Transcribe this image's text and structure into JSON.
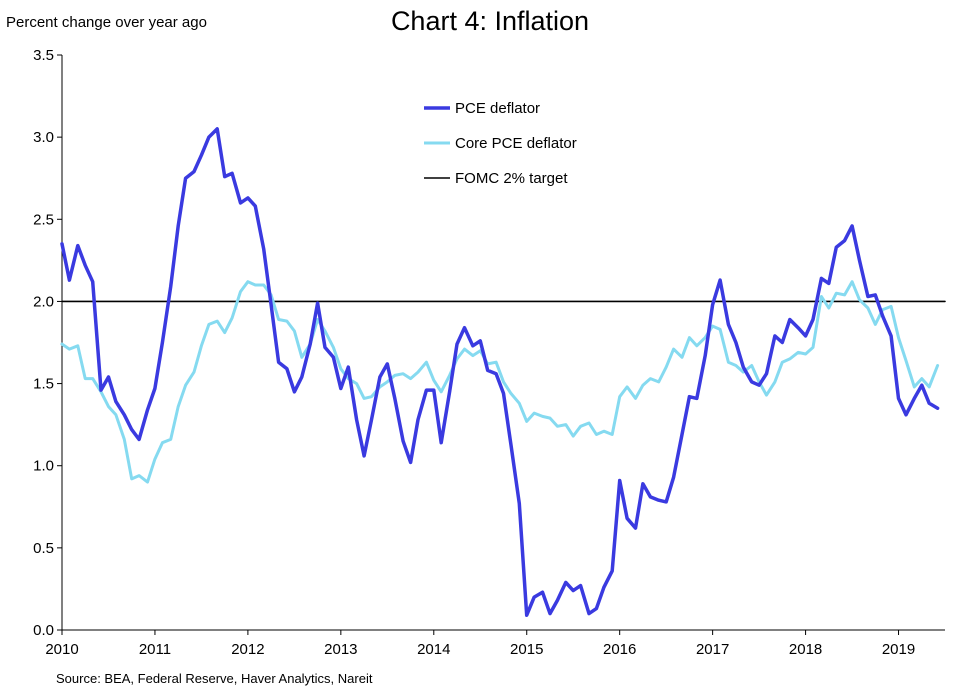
{
  "header": {
    "title": "Chart 4: Inflation",
    "y_unit_label": "Percent change over year ago"
  },
  "footer": {
    "source": "Source: BEA, Federal Reserve, Haver Analytics, Nareit"
  },
  "chart_data": {
    "type": "line",
    "title": "Chart 4: Inflation",
    "ylabel": "Percent change over year ago",
    "xlabel": "",
    "ylim": [
      0.0,
      3.5
    ],
    "xlim": [
      2010,
      2019.5
    ],
    "y_ticks": [
      "0.0",
      "0.5",
      "1.0",
      "1.5",
      "2.0",
      "2.5",
      "3.0",
      "3.5"
    ],
    "x_ticks": [
      "2010",
      "2011",
      "2012",
      "2013",
      "2014",
      "2015",
      "2016",
      "2017",
      "2018",
      "2019"
    ],
    "grid": false,
    "legend_position": "top-center",
    "series": [
      {
        "name": "PCE deflator",
        "color": "#3a3ae0",
        "points": [
          [
            2010.0,
            2.35
          ],
          [
            2010.08,
            2.13
          ],
          [
            2010.17,
            2.34
          ],
          [
            2010.25,
            2.22
          ],
          [
            2010.33,
            2.12
          ],
          [
            2010.42,
            1.46
          ],
          [
            2010.5,
            1.54
          ],
          [
            2010.58,
            1.39
          ],
          [
            2010.67,
            1.31
          ],
          [
            2010.75,
            1.22
          ],
          [
            2010.83,
            1.16
          ],
          [
            2010.92,
            1.34
          ],
          [
            2011.0,
            1.47
          ],
          [
            2011.08,
            1.75
          ],
          [
            2011.17,
            2.09
          ],
          [
            2011.25,
            2.46
          ],
          [
            2011.33,
            2.75
          ],
          [
            2011.42,
            2.79
          ],
          [
            2011.5,
            2.89
          ],
          [
            2011.58,
            3.0
          ],
          [
            2011.67,
            3.05
          ],
          [
            2011.75,
            2.76
          ],
          [
            2011.83,
            2.78
          ],
          [
            2011.92,
            2.6
          ],
          [
            2012.0,
            2.63
          ],
          [
            2012.08,
            2.58
          ],
          [
            2012.17,
            2.32
          ],
          [
            2012.25,
            1.98
          ],
          [
            2012.33,
            1.63
          ],
          [
            2012.42,
            1.59
          ],
          [
            2012.5,
            1.45
          ],
          [
            2012.58,
            1.54
          ],
          [
            2012.67,
            1.74
          ],
          [
            2012.75,
            1.99
          ],
          [
            2012.83,
            1.72
          ],
          [
            2012.92,
            1.66
          ],
          [
            2013.0,
            1.47
          ],
          [
            2013.08,
            1.6
          ],
          [
            2013.17,
            1.28
          ],
          [
            2013.25,
            1.06
          ],
          [
            2013.33,
            1.28
          ],
          [
            2013.42,
            1.54
          ],
          [
            2013.5,
            1.62
          ],
          [
            2013.58,
            1.41
          ],
          [
            2013.67,
            1.15
          ],
          [
            2013.75,
            1.02
          ],
          [
            2013.83,
            1.28
          ],
          [
            2013.92,
            1.46
          ],
          [
            2014.0,
            1.46
          ],
          [
            2014.08,
            1.14
          ],
          [
            2014.17,
            1.45
          ],
          [
            2014.25,
            1.74
          ],
          [
            2014.33,
            1.84
          ],
          [
            2014.42,
            1.73
          ],
          [
            2014.5,
            1.76
          ],
          [
            2014.58,
            1.58
          ],
          [
            2014.67,
            1.56
          ],
          [
            2014.75,
            1.44
          ],
          [
            2014.83,
            1.13
          ],
          [
            2014.92,
            0.77
          ],
          [
            2015.0,
            0.09
          ],
          [
            2015.08,
            0.2
          ],
          [
            2015.17,
            0.23
          ],
          [
            2015.25,
            0.1
          ],
          [
            2015.33,
            0.18
          ],
          [
            2015.42,
            0.29
          ],
          [
            2015.5,
            0.24
          ],
          [
            2015.58,
            0.27
          ],
          [
            2015.67,
            0.1
          ],
          [
            2015.75,
            0.13
          ],
          [
            2015.83,
            0.26
          ],
          [
            2015.92,
            0.36
          ],
          [
            2016.0,
            0.91
          ],
          [
            2016.08,
            0.68
          ],
          [
            2016.17,
            0.62
          ],
          [
            2016.25,
            0.89
          ],
          [
            2016.33,
            0.81
          ],
          [
            2016.42,
            0.79
          ],
          [
            2016.5,
            0.78
          ],
          [
            2016.58,
            0.93
          ],
          [
            2016.67,
            1.19
          ],
          [
            2016.75,
            1.42
          ],
          [
            2016.83,
            1.41
          ],
          [
            2016.92,
            1.67
          ],
          [
            2017.0,
            1.98
          ],
          [
            2017.08,
            2.13
          ],
          [
            2017.17,
            1.86
          ],
          [
            2017.25,
            1.75
          ],
          [
            2017.33,
            1.6
          ],
          [
            2017.42,
            1.51
          ],
          [
            2017.5,
            1.49
          ],
          [
            2017.58,
            1.56
          ],
          [
            2017.67,
            1.79
          ],
          [
            2017.75,
            1.75
          ],
          [
            2017.83,
            1.89
          ],
          [
            2017.92,
            1.84
          ],
          [
            2018.0,
            1.79
          ],
          [
            2018.08,
            1.89
          ],
          [
            2018.17,
            2.14
          ],
          [
            2018.25,
            2.11
          ],
          [
            2018.33,
            2.33
          ],
          [
            2018.42,
            2.37
          ],
          [
            2018.5,
            2.46
          ],
          [
            2018.58,
            2.25
          ],
          [
            2018.67,
            2.03
          ],
          [
            2018.75,
            2.04
          ],
          [
            2018.83,
            1.91
          ],
          [
            2018.92,
            1.79
          ],
          [
            2019.0,
            1.41
          ],
          [
            2019.08,
            1.31
          ],
          [
            2019.17,
            1.41
          ],
          [
            2019.25,
            1.49
          ],
          [
            2019.33,
            1.38
          ],
          [
            2019.42,
            1.35
          ]
        ]
      },
      {
        "name": "Core PCE deflator",
        "color": "#85daf0",
        "points": [
          [
            2010.0,
            1.74
          ],
          [
            2010.08,
            1.71
          ],
          [
            2010.17,
            1.73
          ],
          [
            2010.25,
            1.53
          ],
          [
            2010.33,
            1.53
          ],
          [
            2010.42,
            1.45
          ],
          [
            2010.5,
            1.36
          ],
          [
            2010.58,
            1.31
          ],
          [
            2010.67,
            1.16
          ],
          [
            2010.75,
            0.92
          ],
          [
            2010.83,
            0.94
          ],
          [
            2010.92,
            0.9
          ],
          [
            2011.0,
            1.04
          ],
          [
            2011.08,
            1.14
          ],
          [
            2011.17,
            1.16
          ],
          [
            2011.25,
            1.36
          ],
          [
            2011.33,
            1.49
          ],
          [
            2011.42,
            1.57
          ],
          [
            2011.5,
            1.73
          ],
          [
            2011.58,
            1.86
          ],
          [
            2011.67,
            1.88
          ],
          [
            2011.75,
            1.81
          ],
          [
            2011.83,
            1.9
          ],
          [
            2011.92,
            2.06
          ],
          [
            2012.0,
            2.12
          ],
          [
            2012.08,
            2.1
          ],
          [
            2012.17,
            2.1
          ],
          [
            2012.25,
            2.04
          ],
          [
            2012.33,
            1.89
          ],
          [
            2012.42,
            1.88
          ],
          [
            2012.5,
            1.82
          ],
          [
            2012.58,
            1.66
          ],
          [
            2012.67,
            1.74
          ],
          [
            2012.75,
            1.89
          ],
          [
            2012.83,
            1.82
          ],
          [
            2012.92,
            1.72
          ],
          [
            2013.0,
            1.59
          ],
          [
            2013.08,
            1.53
          ],
          [
            2013.17,
            1.5
          ],
          [
            2013.25,
            1.41
          ],
          [
            2013.33,
            1.42
          ],
          [
            2013.42,
            1.48
          ],
          [
            2013.5,
            1.51
          ],
          [
            2013.58,
            1.55
          ],
          [
            2013.67,
            1.56
          ],
          [
            2013.75,
            1.53
          ],
          [
            2013.83,
            1.57
          ],
          [
            2013.92,
            1.63
          ],
          [
            2014.0,
            1.52
          ],
          [
            2014.08,
            1.45
          ],
          [
            2014.17,
            1.55
          ],
          [
            2014.25,
            1.65
          ],
          [
            2014.33,
            1.71
          ],
          [
            2014.42,
            1.67
          ],
          [
            2014.5,
            1.7
          ],
          [
            2014.58,
            1.62
          ],
          [
            2014.67,
            1.63
          ],
          [
            2014.75,
            1.51
          ],
          [
            2014.83,
            1.44
          ],
          [
            2014.92,
            1.38
          ],
          [
            2015.0,
            1.27
          ],
          [
            2015.08,
            1.32
          ],
          [
            2015.17,
            1.3
          ],
          [
            2015.25,
            1.29
          ],
          [
            2015.33,
            1.24
          ],
          [
            2015.42,
            1.25
          ],
          [
            2015.5,
            1.18
          ],
          [
            2015.58,
            1.24
          ],
          [
            2015.67,
            1.26
          ],
          [
            2015.75,
            1.19
          ],
          [
            2015.83,
            1.21
          ],
          [
            2015.92,
            1.19
          ],
          [
            2016.0,
            1.42
          ],
          [
            2016.08,
            1.48
          ],
          [
            2016.17,
            1.41
          ],
          [
            2016.25,
            1.49
          ],
          [
            2016.33,
            1.53
          ],
          [
            2016.42,
            1.51
          ],
          [
            2016.5,
            1.6
          ],
          [
            2016.58,
            1.71
          ],
          [
            2016.67,
            1.66
          ],
          [
            2016.75,
            1.78
          ],
          [
            2016.83,
            1.73
          ],
          [
            2016.92,
            1.78
          ],
          [
            2017.0,
            1.85
          ],
          [
            2017.08,
            1.83
          ],
          [
            2017.17,
            1.63
          ],
          [
            2017.25,
            1.61
          ],
          [
            2017.33,
            1.57
          ],
          [
            2017.42,
            1.61
          ],
          [
            2017.5,
            1.51
          ],
          [
            2017.58,
            1.43
          ],
          [
            2017.67,
            1.51
          ],
          [
            2017.75,
            1.63
          ],
          [
            2017.83,
            1.65
          ],
          [
            2017.92,
            1.69
          ],
          [
            2018.0,
            1.68
          ],
          [
            2018.08,
            1.72
          ],
          [
            2018.17,
            2.03
          ],
          [
            2018.25,
            1.96
          ],
          [
            2018.33,
            2.05
          ],
          [
            2018.42,
            2.04
          ],
          [
            2018.5,
            2.12
          ],
          [
            2018.58,
            2.01
          ],
          [
            2018.67,
            1.96
          ],
          [
            2018.75,
            1.86
          ],
          [
            2018.83,
            1.95
          ],
          [
            2018.92,
            1.97
          ],
          [
            2019.0,
            1.78
          ],
          [
            2019.08,
            1.64
          ],
          [
            2019.17,
            1.48
          ],
          [
            2019.25,
            1.53
          ],
          [
            2019.33,
            1.48
          ],
          [
            2019.42,
            1.61
          ]
        ]
      },
      {
        "name": "FOMC 2% target",
        "color": "#000000",
        "points": [
          [
            2010.0,
            2.0
          ],
          [
            2019.5,
            2.0
          ]
        ]
      }
    ]
  }
}
